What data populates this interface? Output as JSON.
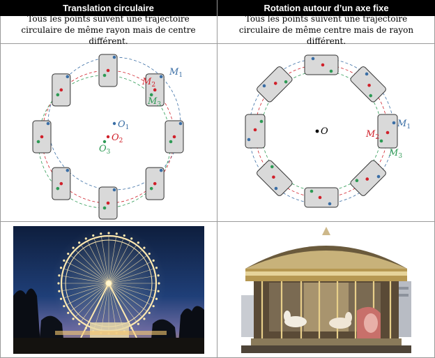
{
  "left": {
    "header": "Translation circulaire",
    "description": "Tous les points suivent une trajectoire circulaire de même rayon mais de centre différent.",
    "labels": {
      "M1": "M",
      "M1_sub": "1",
      "M2": "M",
      "M2_sub": "2",
      "M3": "M",
      "M3_sub": "3",
      "O1": "O",
      "O1_sub": "1",
      "O2": "O",
      "O2_sub": "2",
      "O3": "O",
      "O3_sub": "3"
    }
  },
  "right": {
    "header": "Rotation autour d’un axe fixe",
    "description": "Tous les points suivent une trajectoire circulaire de même centre mais de rayon différent.",
    "labels": {
      "O": "O",
      "M1": "M",
      "M1_sub": "1",
      "M2": "M",
      "M2_sub": "2",
      "M3": "M",
      "M3_sub": "3"
    }
  },
  "colors": {
    "blue": "#3a6ea5",
    "red": "#d0202a",
    "green": "#2e9a55",
    "box_fill": "#d9d9d9",
    "box_stroke": "#333333"
  },
  "photos": {
    "left": "ferris-wheel-photo",
    "right": "carousel-photo"
  }
}
